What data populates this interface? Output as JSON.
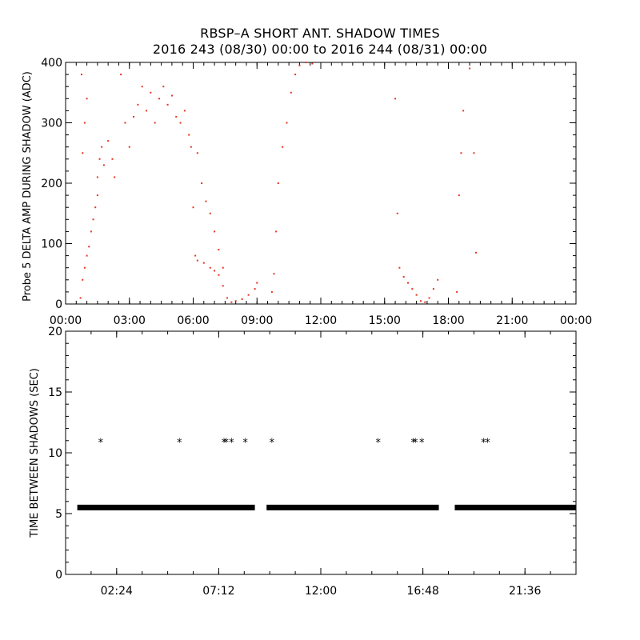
{
  "chart_data": [
    {
      "type": "scatter",
      "title": "RBSP–A SHORT ANT. SHADOW TIMES",
      "subtitle": "2016 243 (08/30) 00:00 to 2016 244 (08/31) 00:00",
      "ylabel": "Probe 5 DELTA AMP DURING SHADOW (ADC)",
      "xlabel": "",
      "x_unit": "hours of day",
      "xlim": [
        0,
        24
      ],
      "ylim": [
        0,
        400
      ],
      "xticks": [
        0,
        3,
        6,
        9,
        12,
        15,
        18,
        21,
        24
      ],
      "xtick_labels": [
        "00:00",
        "03:00",
        "06:00",
        "09:00",
        "12:00",
        "15:00",
        "18:00",
        "21:00",
        "00:00"
      ],
      "yticks": [
        0,
        100,
        200,
        300,
        400
      ],
      "ytick_labels": [
        "0",
        "100",
        "200",
        "300",
        "400"
      ],
      "grid": false,
      "marker": "dot",
      "color": "#e8321e",
      "series": [
        {
          "points": [
            [
              0.7,
              10
            ],
            [
              0.8,
              40
            ],
            [
              0.9,
              60
            ],
            [
              1.0,
              80
            ],
            [
              1.1,
              95
            ],
            [
              1.2,
              120
            ],
            [
              1.3,
              140
            ],
            [
              1.4,
              160
            ],
            [
              1.5,
              180
            ],
            [
              0.8,
              250
            ],
            [
              0.9,
              300
            ],
            [
              1.0,
              340
            ],
            [
              0.75,
              380
            ],
            [
              1.5,
              210
            ],
            [
              1.6,
              240
            ],
            [
              1.7,
              260
            ],
            [
              1.8,
              230
            ],
            [
              2.0,
              270
            ],
            [
              2.2,
              240
            ],
            [
              2.3,
              210
            ],
            [
              2.6,
              380
            ],
            [
              2.8,
              300
            ],
            [
              3.0,
              260
            ],
            [
              3.2,
              310
            ],
            [
              3.4,
              330
            ],
            [
              3.6,
              360
            ],
            [
              3.8,
              320
            ],
            [
              4.0,
              350
            ],
            [
              4.2,
              300
            ],
            [
              4.4,
              340
            ],
            [
              4.6,
              360
            ],
            [
              4.8,
              330
            ],
            [
              5.0,
              345
            ],
            [
              5.2,
              310
            ],
            [
              5.4,
              300
            ],
            [
              5.6,
              320
            ],
            [
              5.8,
              280
            ],
            [
              5.9,
              260
            ],
            [
              6.0,
              160
            ],
            [
              6.1,
              80
            ],
            [
              6.2,
              72
            ],
            [
              6.5,
              68
            ],
            [
              6.8,
              60
            ],
            [
              7.0,
              55
            ],
            [
              7.2,
              48
            ],
            [
              7.4,
              30
            ],
            [
              7.6,
              10
            ],
            [
              7.8,
              3
            ],
            [
              6.2,
              250
            ],
            [
              6.4,
              200
            ],
            [
              6.6,
              170
            ],
            [
              6.8,
              150
            ],
            [
              7.0,
              120
            ],
            [
              7.2,
              90
            ],
            [
              7.4,
              60
            ],
            [
              8.0,
              5
            ],
            [
              8.3,
              8
            ],
            [
              8.6,
              15
            ],
            [
              8.9,
              25
            ],
            [
              9.0,
              35
            ],
            [
              9.7,
              20
            ],
            [
              9.8,
              50
            ],
            [
              9.9,
              120
            ],
            [
              10.0,
              200
            ],
            [
              10.2,
              260
            ],
            [
              10.4,
              300
            ],
            [
              10.6,
              350
            ],
            [
              10.8,
              380
            ],
            [
              11.0,
              395
            ],
            [
              11.3,
              400
            ],
            [
              11.6,
              398
            ],
            [
              15.5,
              340
            ],
            [
              15.6,
              150
            ],
            [
              15.7,
              60
            ],
            [
              15.9,
              45
            ],
            [
              16.1,
              35
            ],
            [
              16.3,
              25
            ],
            [
              16.5,
              15
            ],
            [
              16.7,
              5
            ],
            [
              16.9,
              3
            ],
            [
              17.1,
              10
            ],
            [
              17.3,
              25
            ],
            [
              17.5,
              40
            ],
            [
              18.4,
              20
            ],
            [
              18.5,
              180
            ],
            [
              18.6,
              250
            ],
            [
              18.7,
              320
            ],
            [
              19.0,
              390
            ],
            [
              19.2,
              250
            ],
            [
              19.3,
              85
            ]
          ]
        }
      ]
    },
    {
      "type": "scatter",
      "ylabel": "TIME BETWEEN SHADOWS (SEC)",
      "xlabel": "",
      "x_unit": "hours of day",
      "xlim": [
        0,
        24
      ],
      "ylim": [
        0,
        20
      ],
      "xticks": [
        2.4,
        7.2,
        12.0,
        16.8,
        21.6
      ],
      "xtick_labels": [
        "02:24",
        "07:12",
        "12:00",
        "16:48",
        "21:36"
      ],
      "yticks": [
        0,
        5,
        10,
        15,
        20
      ],
      "ytick_labels": [
        "0",
        "5",
        "10",
        "15",
        "20"
      ],
      "grid": false,
      "marker": "asterisk",
      "color": "#000000",
      "series": [
        {
          "baseline_value": 5.5,
          "baseline_intervals": [
            [
              0.55,
              8.9
            ],
            [
              9.45,
              17.55
            ],
            [
              18.3,
              24.0
            ]
          ],
          "points": [
            [
              1.65,
              10.9
            ],
            [
              5.35,
              10.9
            ],
            [
              7.45,
              10.9
            ],
            [
              7.55,
              10.9
            ],
            [
              7.8,
              10.9
            ],
            [
              8.45,
              10.9
            ],
            [
              9.7,
              10.9
            ],
            [
              14.7,
              10.9
            ],
            [
              16.35,
              10.9
            ],
            [
              16.45,
              10.9
            ],
            [
              16.75,
              10.9
            ],
            [
              19.65,
              10.9
            ],
            [
              19.85,
              10.9
            ]
          ]
        }
      ]
    }
  ]
}
